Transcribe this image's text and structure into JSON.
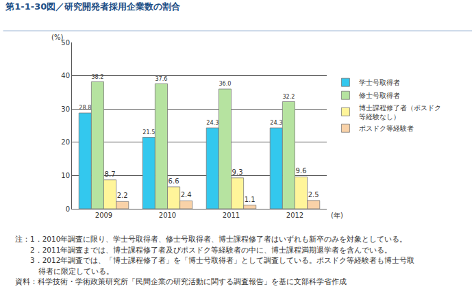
{
  "chart_data": {
    "type": "bar",
    "title": "第1-1-30図／研究開発者採用企業数の割合",
    "ylabel": "(%)",
    "xlabel": "(年)",
    "categories": [
      "2009",
      "2010",
      "2011",
      "2012"
    ],
    "series": [
      {
        "name": "学士号取得者",
        "color": "#33c8ee",
        "values": [
          28.8,
          21.5,
          24.3,
          24.3
        ]
      },
      {
        "name": "修士号取得者",
        "color": "#b6e3a0",
        "values": [
          38.2,
          37.6,
          36.0,
          32.2
        ],
        "value_labels": [
          "38.2",
          "37.6",
          "36.0",
          "32.2"
        ]
      },
      {
        "name": "博士課程修了者（ポスドク等経験なし）",
        "color": "#fff59a",
        "values": [
          8.7,
          6.6,
          9.3,
          9.6
        ]
      },
      {
        "name": "ポスドク等経験者",
        "color": "#f9d2a8",
        "values": [
          2.2,
          2.4,
          1.1,
          2.5
        ]
      }
    ],
    "ylim": [
      0,
      50
    ],
    "yticks": [
      0,
      10,
      20,
      30,
      40,
      50
    ],
    "grid": true,
    "legend": "right",
    "data_labels": true,
    "annotations": [
      "注：1．2010年調査に限り、学士号取得者、修士号取得者、博士課程修了者はいずれも新卒のみを対象としている。",
      "2．2011年調査までは、博士課程修了者及びポスドク等経験者の中に、博士課程満期退学者を含んでいる。",
      "3．2012年調査では、「博士課程修了者」を「博士号取得者」として調査している。ポスドク等経験者も博士号取",
      "得者に限定している。",
      "資料：科学技術・学術政策研究所「民間企業の研究活動に関する調査報告」を基に文部科学省作成"
    ]
  }
}
